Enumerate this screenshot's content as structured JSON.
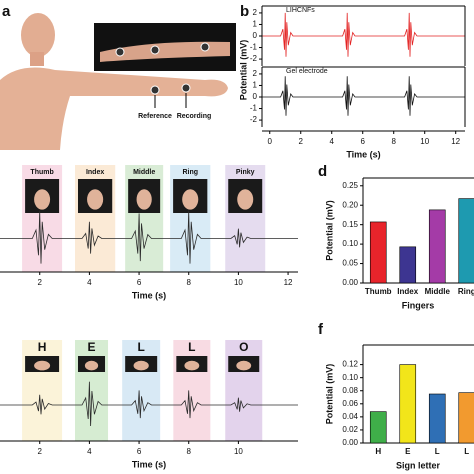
{
  "illustration": {
    "panel": "a",
    "labels": [
      "Reference",
      "Recording"
    ]
  },
  "chart_data": [
    {
      "type": "line",
      "panel": "b",
      "xlabel": "Time (s)",
      "ylabel": "Potential (mV)",
      "x": [
        -0.5,
        0.7,
        0.85,
        0.95,
        1,
        1.05,
        1.1,
        1.2,
        1.35,
        1.5,
        4.7,
        4.85,
        4.95,
        5,
        5.05,
        5.1,
        5.2,
        5.35,
        5.5,
        8.7,
        8.85,
        8.95,
        9,
        9.05,
        9.1,
        9.2,
        9.35,
        9.5,
        12.6
      ],
      "series": [
        {
          "name": "LIHCNFs",
          "color": "#e32222",
          "values": [
            0,
            0,
            0.6,
            -1.2,
            2,
            -1.8,
            1.2,
            -0.8,
            0.3,
            0,
            0,
            0.6,
            -1.2,
            2,
            -1.8,
            1.2,
            -0.8,
            0.3,
            0,
            0,
            0.6,
            -1.2,
            2,
            -1.8,
            1.2,
            -0.8,
            0.3,
            0,
            0
          ]
        },
        {
          "name": "Gel electrode",
          "color": "#111111",
          "values": [
            0,
            0,
            0.54,
            -1.08,
            1.8,
            -1.62,
            1.08,
            -0.72,
            0.27,
            0,
            0,
            0.54,
            -1.08,
            1.8,
            -1.62,
            1.08,
            -0.72,
            0.27,
            0,
            0,
            0.54,
            -1.08,
            1.8,
            -1.62,
            1.08,
            -0.72,
            0.27,
            0,
            0
          ]
        }
      ],
      "xlim": [
        -0.5,
        12.6
      ],
      "xticks": [
        0,
        2,
        4,
        6,
        8,
        10,
        12
      ],
      "ylim": [
        -2.6,
        2.6
      ],
      "yticks": [
        -2,
        -1,
        0,
        1,
        2
      ]
    },
    {
      "type": "line",
      "xlabel": "Time (s)",
      "x": [
        0.4,
        1.7,
        1.85,
        1.95,
        2,
        2.05,
        2.1,
        2.2,
        2.35,
        2.5,
        3.7,
        3.85,
        3.95,
        4,
        4.05,
        4.1,
        4.2,
        4.35,
        4.5,
        5.7,
        5.85,
        5.95,
        6,
        6.05,
        6.1,
        6.2,
        6.35,
        6.5,
        7.7,
        7.85,
        7.95,
        8,
        8.05,
        8.1,
        8.2,
        8.35,
        8.5,
        9.7,
        9.85,
        9.95,
        10,
        10.05,
        10.1,
        10.2,
        10.35,
        10.5,
        12.4
      ],
      "series": [
        {
          "color": "#2b2b2b",
          "values": [
            0,
            0,
            0.3,
            -0.6,
            1,
            -0.9,
            0.6,
            -0.4,
            0.15,
            0,
            0,
            0.18,
            -0.36,
            0.6,
            -0.54,
            0.36,
            -0.24,
            0.09,
            0,
            0,
            0.27,
            -0.54,
            0.9,
            -0.81,
            0.54,
            -0.36,
            0.14,
            0,
            0,
            0.3,
            -0.6,
            1,
            -0.9,
            0.6,
            -0.4,
            0.15,
            0,
            0,
            0.1,
            -0.21,
            0.35,
            -0.32,
            0.21,
            -0.14,
            0.05,
            0,
            0
          ]
        }
      ],
      "regions": [
        {
          "label": "Thumb",
          "start": 1.29,
          "end": 2.9,
          "color": "#f8dbe6"
        },
        {
          "label": "Index",
          "start": 3.42,
          "end": 5.04,
          "color": "#fbead6"
        },
        {
          "label": "Middle",
          "start": 5.44,
          "end": 6.97,
          "color": "#d9ecd6"
        },
        {
          "label": "Ring",
          "start": 7.25,
          "end": 8.87,
          "color": "#d9ebf6"
        },
        {
          "label": "Pinky",
          "start": 9.47,
          "end": 11.08,
          "color": "#e5dcef"
        }
      ],
      "xlim": [
        0.4,
        12.4
      ],
      "xticks": [
        2,
        4,
        6,
        8,
        10,
        12
      ],
      "ylim": [
        -1.2,
        1.2
      ]
    },
    {
      "type": "bar",
      "panel": "d",
      "xlabel": "Fingers",
      "ylabel": "Potential (mV)",
      "categories": [
        "Thumb",
        "Index",
        "Middle",
        "Ring"
      ],
      "values": [
        0.157,
        0.093,
        0.188,
        0.217
      ],
      "colors": [
        "#e8242b",
        "#3d3591",
        "#a43ba7",
        "#1e9ab0"
      ],
      "ylim": [
        0,
        0.27
      ],
      "yticks": [
        {
          "value": 0,
          "label": "0.00"
        },
        {
          "value": 0.05,
          "label": "0.05"
        },
        {
          "value": 0.1,
          "label": "0.10"
        },
        {
          "value": 0.15,
          "label": "0.15"
        },
        {
          "value": 0.2,
          "label": "0.20"
        },
        {
          "value": 0.25,
          "label": "0.25"
        }
      ]
    },
    {
      "type": "line",
      "xlabel": "Time (s)",
      "x": [
        0.4,
        1.7,
        1.85,
        1.95,
        2,
        2.05,
        2.1,
        2.2,
        2.35,
        2.5,
        3.7,
        3.85,
        3.95,
        4,
        4.05,
        4.1,
        4.2,
        4.35,
        4.5,
        5.7,
        5.85,
        5.95,
        6,
        6.05,
        6.1,
        6.2,
        6.35,
        6.5,
        7.7,
        7.85,
        7.95,
        8,
        8.05,
        8.1,
        8.2,
        8.35,
        8.5,
        9.7,
        9.85,
        9.95,
        10,
        10.05,
        10.1,
        10.2,
        10.35,
        10.5,
        12.4
      ],
      "series": [
        {
          "color": "#2b2b2b",
          "values": [
            0,
            0,
            0.1,
            -0.21,
            0.35,
            -0.32,
            0.21,
            -0.14,
            0.05,
            0,
            0,
            0.24,
            -0.48,
            0.8,
            -0.72,
            0.48,
            -0.32,
            0.12,
            0,
            0,
            0.15,
            -0.3,
            0.5,
            -0.45,
            0.3,
            -0.2,
            0.08,
            0,
            0,
            0.15,
            -0.3,
            0.5,
            -0.45,
            0.3,
            -0.2,
            0.08,
            0,
            0,
            0.08,
            -0.15,
            0.25,
            -0.23,
            0.15,
            -0.1,
            0.04,
            0,
            0
          ]
        }
      ],
      "regions": [
        {
          "label": "H",
          "start": 1.29,
          "end": 2.9,
          "color": "#fbf3d9"
        },
        {
          "label": "E",
          "start": 3.42,
          "end": 4.75,
          "color": "#d6ecd2"
        },
        {
          "label": "L",
          "start": 5.32,
          "end": 6.85,
          "color": "#d8e9f5"
        },
        {
          "label": "L",
          "start": 7.38,
          "end": 8.87,
          "color": "#f8dbe3"
        },
        {
          "label": "O",
          "start": 9.47,
          "end": 10.96,
          "color": "#e3d3ec"
        }
      ],
      "xlim": [
        0.4,
        12.4
      ],
      "xticks": [
        2,
        4,
        6,
        8,
        10
      ],
      "ylim": [
        -1.2,
        1.2
      ]
    },
    {
      "type": "bar",
      "panel": "f",
      "xlabel": "Sign letter",
      "ylabel": "Potential (mV)",
      "categories": [
        "H",
        "E",
        "L",
        "L"
      ],
      "values": [
        0.048,
        0.12,
        0.075,
        0.077
      ],
      "colors": [
        "#3fae49",
        "#f2e51a",
        "#2f6fb5",
        "#f29a2f"
      ],
      "ylim": [
        0,
        0.15
      ],
      "yticks": [
        {
          "value": 0,
          "label": "0.00"
        },
        {
          "value": 0.02,
          "label": "0.02"
        },
        {
          "value": 0.04,
          "label": "0.04"
        },
        {
          "value": 0.06,
          "label": "0.06"
        },
        {
          "value": 0.08,
          "label": "0.08"
        },
        {
          "value": 0.1,
          "label": "0.10"
        },
        {
          "value": 0.12,
          "label": "0.12"
        }
      ]
    }
  ]
}
